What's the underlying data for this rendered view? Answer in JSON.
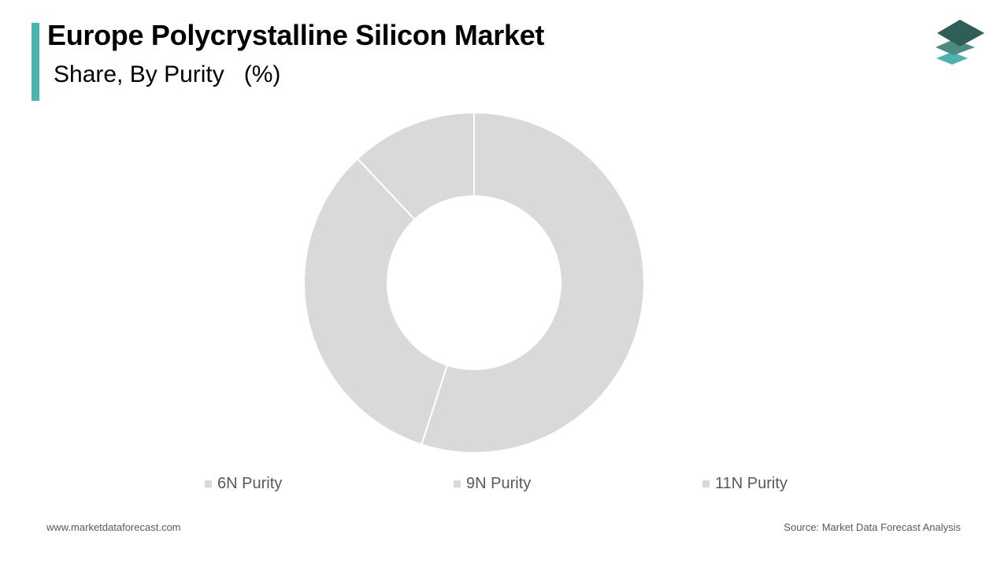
{
  "header": {
    "title": "Europe Polycrystalline Silicon Market",
    "subtitle": "Share, By Purity   (%)",
    "accent_color": "#4bb3b0"
  },
  "logo": {
    "icon": "stacked-layers-icon",
    "colors": [
      "#2e5e58",
      "#4d8a82",
      "#4bb3b0"
    ]
  },
  "chart_data": {
    "type": "pie",
    "donut": true,
    "categories": [
      "6N Purity",
      "9N Purity",
      "11N Purity"
    ],
    "values": [
      55,
      33,
      12
    ],
    "colors": [
      "#d9d9d9",
      "#d9d9d9",
      "#d9d9d9"
    ],
    "legend_position": "bottom",
    "start_angle": "12 o'clock",
    "direction": "clockwise"
  },
  "footer": {
    "website": "www.marketdataforecast.com",
    "source": "Source: Market Data Forecast Analysis"
  }
}
